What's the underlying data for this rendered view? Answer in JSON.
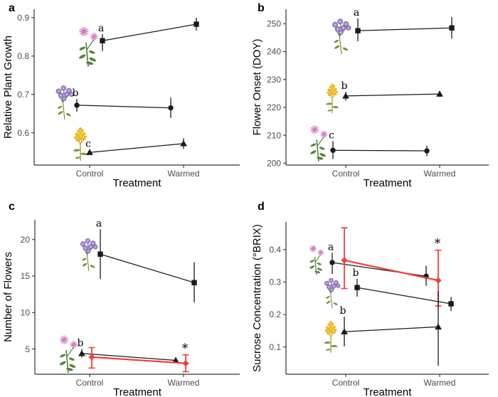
{
  "figure": {
    "background": "#ffffff",
    "axis_color": "#333333",
    "tick_label_color": "#4d4d4d",
    "black_series_color": "#1a1a1a",
    "red_series_color": "#ee403c"
  },
  "chart_data": [
    {
      "type": "line",
      "panel_label": "a",
      "ylabel": "Relative Plant Growth",
      "xlabel": "Treatment",
      "categories": [
        "Control",
        "Warmed"
      ],
      "ylim": [
        0.516,
        0.922
      ],
      "grid": false,
      "yticks": [
        {
          "v": 0.6,
          "label": "0.6"
        },
        {
          "v": 0.7,
          "label": "0.7"
        },
        {
          "v": 0.8,
          "label": "0.8"
        },
        {
          "v": 0.9,
          "label": "0.9"
        }
      ],
      "series": [
        {
          "name": "pink-bergamot",
          "marker": "square",
          "color": "black",
          "dx": 18,
          "sig": "a",
          "values": [
            0.84,
            0.883
          ],
          "err_lo": [
            0.813,
            0.866
          ],
          "err_hi": [
            0.857,
            0.9
          ]
        },
        {
          "name": "purple-aster",
          "marker": "circle",
          "color": "black",
          "dx": -18,
          "sig": "b",
          "values": [
            0.672,
            0.665
          ],
          "err_lo": [
            0.655,
            0.639
          ],
          "err_hi": [
            0.688,
            0.692
          ]
        },
        {
          "name": "yellow-goldenrod",
          "marker": "triangle",
          "color": "black",
          "dx": 0,
          "sig": "c",
          "values": [
            0.549,
            0.572
          ],
          "err_lo": [
            0.543,
            0.558
          ],
          "err_hi": [
            0.556,
            0.586
          ]
        }
      ],
      "icons": [
        {
          "type": "monarda",
          "cx": 123,
          "cy": 64,
          "h": 62
        },
        {
          "type": "aster",
          "cx": 91,
          "cy": 143,
          "h": 52
        },
        {
          "type": "goldenrod",
          "cx": 113,
          "cy": 201,
          "h": 52
        }
      ]
    },
    {
      "type": "line",
      "panel_label": "b",
      "ylabel": "Flower Onset (DOY)",
      "xlabel": "Treatment",
      "categories": [
        "Control",
        "Warmed"
      ],
      "ylim": [
        199.3,
        255.2
      ],
      "grid": false,
      "yticks": [
        {
          "v": 200,
          "label": "200"
        },
        {
          "v": 210,
          "label": "210"
        },
        {
          "v": 220,
          "label": "220"
        },
        {
          "v": 230,
          "label": "230"
        },
        {
          "v": 240,
          "label": "240"
        },
        {
          "v": 250,
          "label": "250"
        }
      ],
      "series": [
        {
          "name": "purple-aster",
          "marker": "square",
          "color": "black",
          "dx": 17,
          "sig": "a",
          "values": [
            247.5,
            248.5
          ],
          "err_lo": [
            243.7,
            244.7
          ],
          "err_hi": [
            251.9,
            252.4
          ]
        },
        {
          "name": "yellow-goldenrod",
          "marker": "triangle",
          "color": "black",
          "dx": 0,
          "sig": "b",
          "values": [
            224.1,
            224.8
          ],
          "err_lo": [
            222.4,
            223.7
          ],
          "err_hi": [
            225.6,
            225.9
          ]
        },
        {
          "name": "pink-bergamot",
          "marker": "circle",
          "color": "black",
          "dx": -18,
          "sig": "c",
          "values": [
            204.6,
            204.4
          ],
          "err_lo": [
            201.5,
            202.5
          ],
          "err_hi": [
            207.9,
            206.2
          ]
        }
      ],
      "icons": [
        {
          "type": "aster",
          "cx": 130,
          "cy": 50,
          "h": 54
        },
        {
          "type": "goldenrod",
          "cx": 117,
          "cy": 137,
          "h": 46
        },
        {
          "type": "monarda",
          "cx": 97,
          "cy": 200,
          "h": 56
        }
      ]
    },
    {
      "type": "line",
      "panel_label": "c",
      "ylabel": "Number of Flowers",
      "xlabel": "Treatment",
      "categories": [
        "Control",
        "Warmed"
      ],
      "ylim": [
        1.55,
        22.7
      ],
      "grid": false,
      "yticks": [
        {
          "v": 5,
          "label": "5"
        },
        {
          "v": 10,
          "label": "10"
        },
        {
          "v": 15,
          "label": "15"
        },
        {
          "v": 20,
          "label": "20"
        }
      ],
      "series": [
        {
          "name": "purple-aster",
          "marker": "square",
          "color": "black",
          "dx": 15,
          "sig": "a",
          "values": [
            18.0,
            14.1
          ],
          "err_lo": [
            14.6,
            11.4
          ],
          "err_hi": [
            21.4,
            16.9
          ]
        },
        {
          "name": "pink-bergamot",
          "marker": "triangle",
          "color": "black",
          "dx": -11,
          "sig": "b",
          "values": [
            4.4,
            3.45
          ],
          "err_lo": [
            3.85,
            3.1
          ],
          "err_hi": [
            5.0,
            3.85
          ]
        },
        {
          "name": "pink-bergamot-red",
          "marker": "diamond",
          "color": "red",
          "dx": 3,
          "capped": true,
          "sig_warmed": "*",
          "values": [
            3.9,
            3.05
          ],
          "err_lo": [
            2.4,
            1.9
          ],
          "err_hi": [
            5.2,
            4.2
          ]
        }
      ],
      "icons": [
        {
          "type": "aster",
          "cx": 125,
          "cy": 78,
          "h": 50
        },
        {
          "type": "monarda",
          "cx": 95,
          "cy": 217,
          "h": 58
        }
      ]
    },
    {
      "type": "line",
      "panel_label": "d",
      "ylabel": "Sucrose Concentration (°BRIX)",
      "xlabel": "Treatment",
      "categories": [
        "Control",
        "Warmed"
      ],
      "ylim": [
        0.016,
        0.485
      ],
      "grid": false,
      "yticks": [
        {
          "v": 0.1,
          "label": "0.1"
        },
        {
          "v": 0.2,
          "label": "0.2"
        },
        {
          "v": 0.3,
          "label": "0.3"
        },
        {
          "v": 0.4,
          "label": "0.4"
        }
      ],
      "series": [
        {
          "name": "pink-bergamot",
          "marker": "circle",
          "color": "black",
          "dx": -19,
          "sig": "a",
          "values": [
            0.36,
            0.318
          ],
          "err_lo": [
            0.325,
            0.288
          ],
          "err_hi": [
            0.39,
            0.35
          ]
        },
        {
          "name": "pink-bergamot-red",
          "marker": "diamond",
          "color": "red",
          "dx": -2,
          "capped": true,
          "sig_warmed": "*",
          "values": [
            0.367,
            0.305
          ],
          "err_lo": [
            0.28,
            0.226
          ],
          "err_hi": [
            0.467,
            0.398
          ]
        },
        {
          "name": "purple-aster",
          "marker": "square",
          "color": "black",
          "dx": 16,
          "sig": "b",
          "values": [
            0.283,
            0.233
          ],
          "err_lo": [
            0.255,
            0.211
          ],
          "err_hi": [
            0.31,
            0.254
          ]
        },
        {
          "name": "yellow-goldenrod",
          "marker": "triangle",
          "color": "black",
          "dx": -2,
          "sig": "b",
          "values": [
            0.147,
            0.162
          ],
          "err_lo": [
            0.102,
            0.042
          ],
          "err_hi": [
            0.193,
            0.272
          ]
        }
      ],
      "icons": [
        {
          "type": "monarda",
          "cx": 94,
          "cy": 85,
          "h": 46
        },
        {
          "type": "aster",
          "cx": 117,
          "cy": 132,
          "h": 46
        },
        {
          "type": "goldenrod",
          "cx": 115,
          "cy": 193,
          "h": 49
        }
      ]
    }
  ]
}
